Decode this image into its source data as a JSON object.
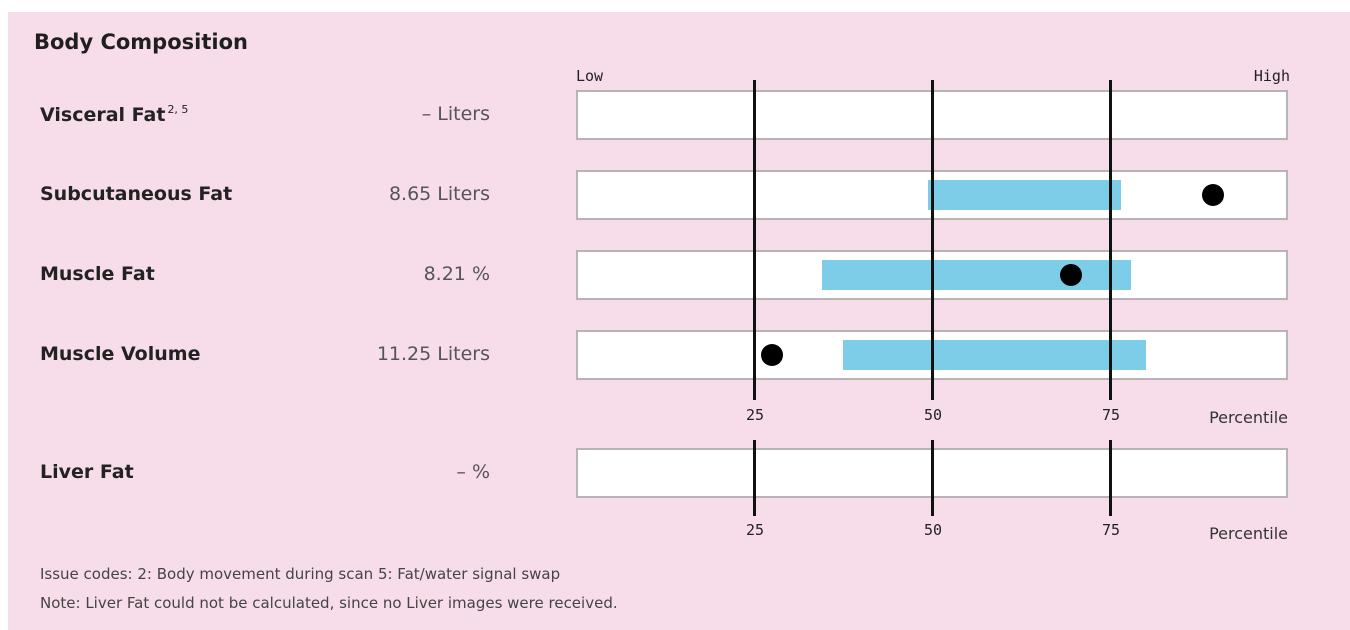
{
  "title": "Body Composition",
  "scale": {
    "low_label": "Low",
    "high_label": "High",
    "axis_title": "Percentile"
  },
  "chart_data": [
    {
      "type": "range-dot",
      "title": "Body Composition",
      "xlabel": "Percentile",
      "xlim": [
        0,
        100
      ],
      "ticks": [
        25,
        50,
        75
      ],
      "tick_labels": [
        "25",
        "50",
        "75"
      ],
      "grid": true,
      "rows": [
        {
          "label": "Visceral Fat",
          "superscript": "2, 5",
          "value_text": "– Liters",
          "range": null,
          "marker": null
        },
        {
          "label": "Subcutaneous Fat",
          "value_text": "8.65 Liters",
          "range": [
            49.5,
            76.5
          ],
          "marker": 89.5
        },
        {
          "label": "Muscle Fat",
          "value_text": "8.21 %",
          "range": [
            34.5,
            78
          ],
          "marker": 69.5
        },
        {
          "label": "Muscle Volume",
          "value_text": "11.25 Liters",
          "range": [
            37.5,
            80
          ],
          "marker": 27.5
        }
      ]
    },
    {
      "type": "range-dot",
      "xlabel": "Percentile",
      "xlim": [
        0,
        100
      ],
      "ticks": [
        25,
        50,
        75
      ],
      "tick_labels": [
        "25",
        "50",
        "75"
      ],
      "grid": true,
      "rows": [
        {
          "label": "Liver Fat",
          "value_text": "– %",
          "range": null,
          "marker": null
        }
      ]
    }
  ],
  "notes": {
    "issue_codes": "Issue codes: 2: Body movement during scan 5: Fat/water signal swap",
    "note": "Note: Liver Fat could not be calculated, since no Liver images were received."
  },
  "colors": {
    "background": "#f7dde9",
    "range": "#7dcce8",
    "marker": "#000000",
    "track": "#ffffff"
  }
}
